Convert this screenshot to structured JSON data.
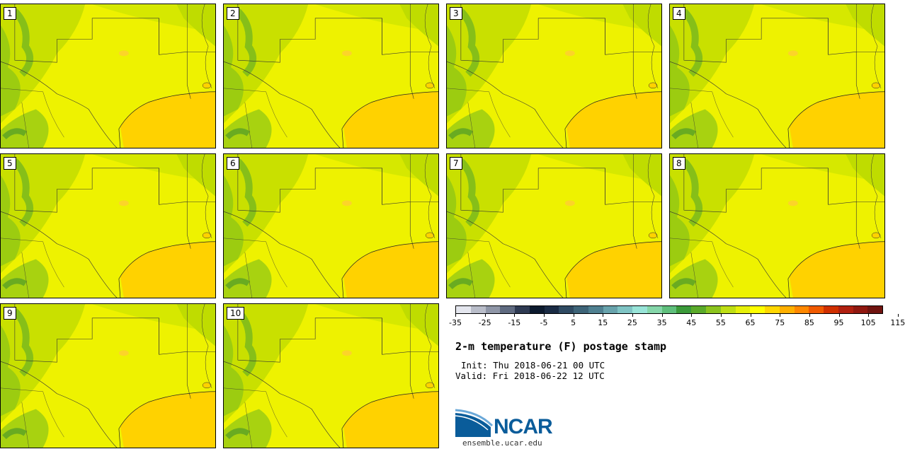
{
  "stamps": [
    {
      "label": "1"
    },
    {
      "label": "2"
    },
    {
      "label": "3"
    },
    {
      "label": "4"
    },
    {
      "label": "5"
    },
    {
      "label": "6"
    },
    {
      "label": "7"
    },
    {
      "label": "8"
    },
    {
      "label": "9"
    },
    {
      "label": "10"
    }
  ],
  "colorbar": {
    "colors": [
      "#e4e6ee",
      "#b9bdc9",
      "#8f96a7",
      "#5f6a80",
      "#2e3a52",
      "#0c1a2e",
      "#1a2b44",
      "#2f4a62",
      "#3e6478",
      "#4f8090",
      "#68a3ac",
      "#7fc4c4",
      "#98e4d8",
      "#85d6a9",
      "#5fbf7c",
      "#3b9a3a",
      "#5aaa2a",
      "#8cc41e",
      "#bede14",
      "#e6f00a",
      "#ffff00",
      "#ffd700",
      "#ffb000",
      "#ff8800",
      "#f05a00",
      "#d03000",
      "#b02010",
      "#901810",
      "#701410"
    ],
    "ticks": [
      "-35",
      "-25",
      "-15",
      "-5",
      "5",
      "15",
      "25",
      "35",
      "45",
      "55",
      "65",
      "75",
      "85",
      "95",
      "105",
      "115"
    ]
  },
  "title": "2-m temperature (F) postage stamp",
  "init": "Init: Thu 2018-06-21 00 UTC",
  "valid": "Valid: Fri 2018-06-22 12 UTC",
  "logo": {
    "text": "NCAR",
    "site": "ensemble.ucar.edu"
  }
}
